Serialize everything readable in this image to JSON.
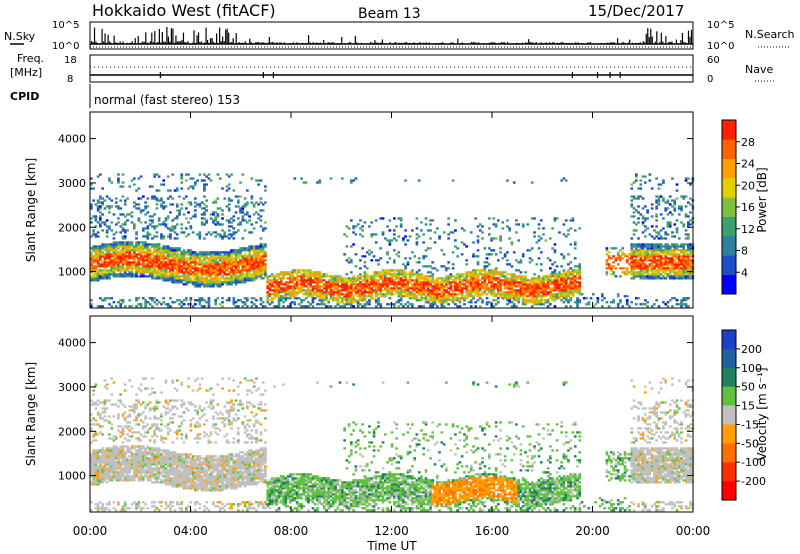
{
  "header": {
    "station": "Hokkaido West (fitACF)",
    "beam": "Beam 13",
    "date": "15/Dec/2017"
  },
  "summary_panels": {
    "nsky_label": "N.Sky",
    "nsky_ticks": [
      "10^5",
      "10^0"
    ],
    "nsearch_label": "N.Search",
    "nsearch_ticks": [
      "10^5",
      "10^0"
    ],
    "freq_label_line1": "Freq.",
    "freq_label_line2": "[MHz]",
    "freq_ticks": [
      "18",
      "8"
    ],
    "nave_label": "Nave",
    "nave_ticks": [
      "60",
      "0"
    ],
    "cpid_label": "CPID",
    "cpid_text": "normal (fast stereo) 153"
  },
  "chart_data": [
    {
      "type": "heatmap",
      "panel": "power",
      "ylabel": "Slant Range [km]",
      "yticks": [
        "1000",
        "2000",
        "3000",
        "4000"
      ],
      "ylim": [
        180,
        4600
      ],
      "xlim_hours": [
        0,
        24
      ],
      "colorbar_label": "Power [dB]",
      "colorbar_ticks": [
        "4",
        "8",
        "12",
        "16",
        "20",
        "24",
        "28"
      ],
      "colorbar_range": [
        0,
        32
      ],
      "colors": [
        "#0000ff",
        "#1f4fc8",
        "#2f7fa0",
        "#3f9f6f",
        "#80c040",
        "#e0d000",
        "#ffa000",
        "#ff6000",
        "#ff2000"
      ]
    },
    {
      "type": "heatmap",
      "panel": "velocity",
      "ylabel": "Slant Range [km]",
      "yticks": [
        "1000",
        "2000",
        "3000",
        "4000"
      ],
      "ylim": [
        180,
        4600
      ],
      "xlim_hours": [
        0,
        24
      ],
      "colorbar_label": "Velocity [m s⁻¹]",
      "colorbar_ticks": [
        "200",
        "100",
        "50",
        "15",
        "-15",
        "-50",
        "-100",
        "-200"
      ],
      "colors": [
        "#1f3fc8",
        "#2060a0",
        "#208060",
        "#60c040",
        "#c0c0c0",
        "#ffa000",
        "#ff7000",
        "#ff3000",
        "#ff0000"
      ]
    }
  ],
  "xaxis": {
    "label": "Time UT",
    "ticks": [
      "00:00",
      "04:00",
      "08:00",
      "12:00",
      "16:00",
      "20:00",
      "00:00"
    ]
  }
}
